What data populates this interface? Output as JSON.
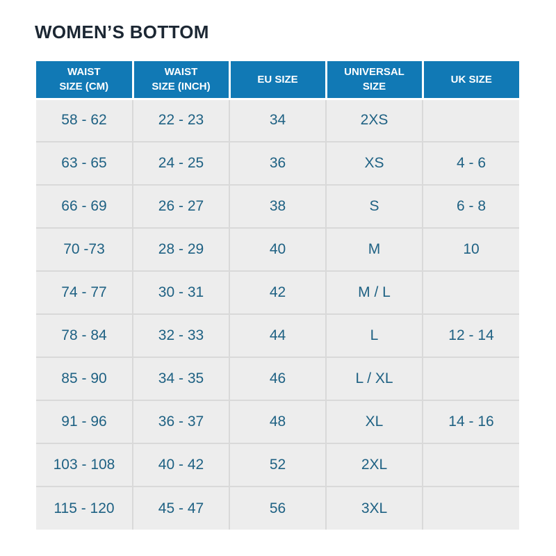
{
  "page": {
    "title": "WOMEN’S BOTTOM"
  },
  "table": {
    "header_labels": [
      "WAIST\nSIZE (CM)",
      "WAIST\nSIZE (INCH)",
      "EU SIZE",
      "UNIVERSAL\nSIZE",
      "UK SIZE"
    ]
  },
  "chart_data": {
    "type": "table",
    "title": "WOMEN’S BOTTOM",
    "columns": [
      "WAIST SIZE (CM)",
      "WAIST SIZE (INCH)",
      "EU SIZE",
      "UNIVERSAL SIZE",
      "UK SIZE"
    ],
    "rows": [
      [
        "58 - 62",
        "22 - 23",
        "34",
        "2XS",
        ""
      ],
      [
        "63 - 65",
        "24 - 25",
        "36",
        "XS",
        "4 - 6"
      ],
      [
        "66 - 69",
        "26 - 27",
        "38",
        "S",
        "6 - 8"
      ],
      [
        "70 -73",
        "28 - 29",
        "40",
        "M",
        "10"
      ],
      [
        "74 - 77",
        "30 - 31",
        "42",
        "M / L",
        ""
      ],
      [
        "78 - 84",
        "32 - 33",
        "44",
        "L",
        "12 - 14"
      ],
      [
        "85 - 90",
        "34 - 35",
        "46",
        "L / XL",
        ""
      ],
      [
        "91 - 96",
        "36 - 37",
        "48",
        "XL",
        "14 - 16"
      ],
      [
        "103 - 108",
        "40 - 42",
        "52",
        "2XL",
        ""
      ],
      [
        "115 - 120",
        "45 - 47",
        "56",
        "3XL",
        ""
      ]
    ],
    "layout": {
      "grid": true,
      "header_position": "top",
      "empty_cells": "blank"
    }
  },
  "colors": {
    "header_bg": "#1179b5",
    "header_text": "#ffffff",
    "cell_bg": "#ededed",
    "cell_text": "#1e6183",
    "grid_line": "#d9d9d9",
    "title_text": "#1c2733",
    "page_bg": "#ffffff"
  }
}
